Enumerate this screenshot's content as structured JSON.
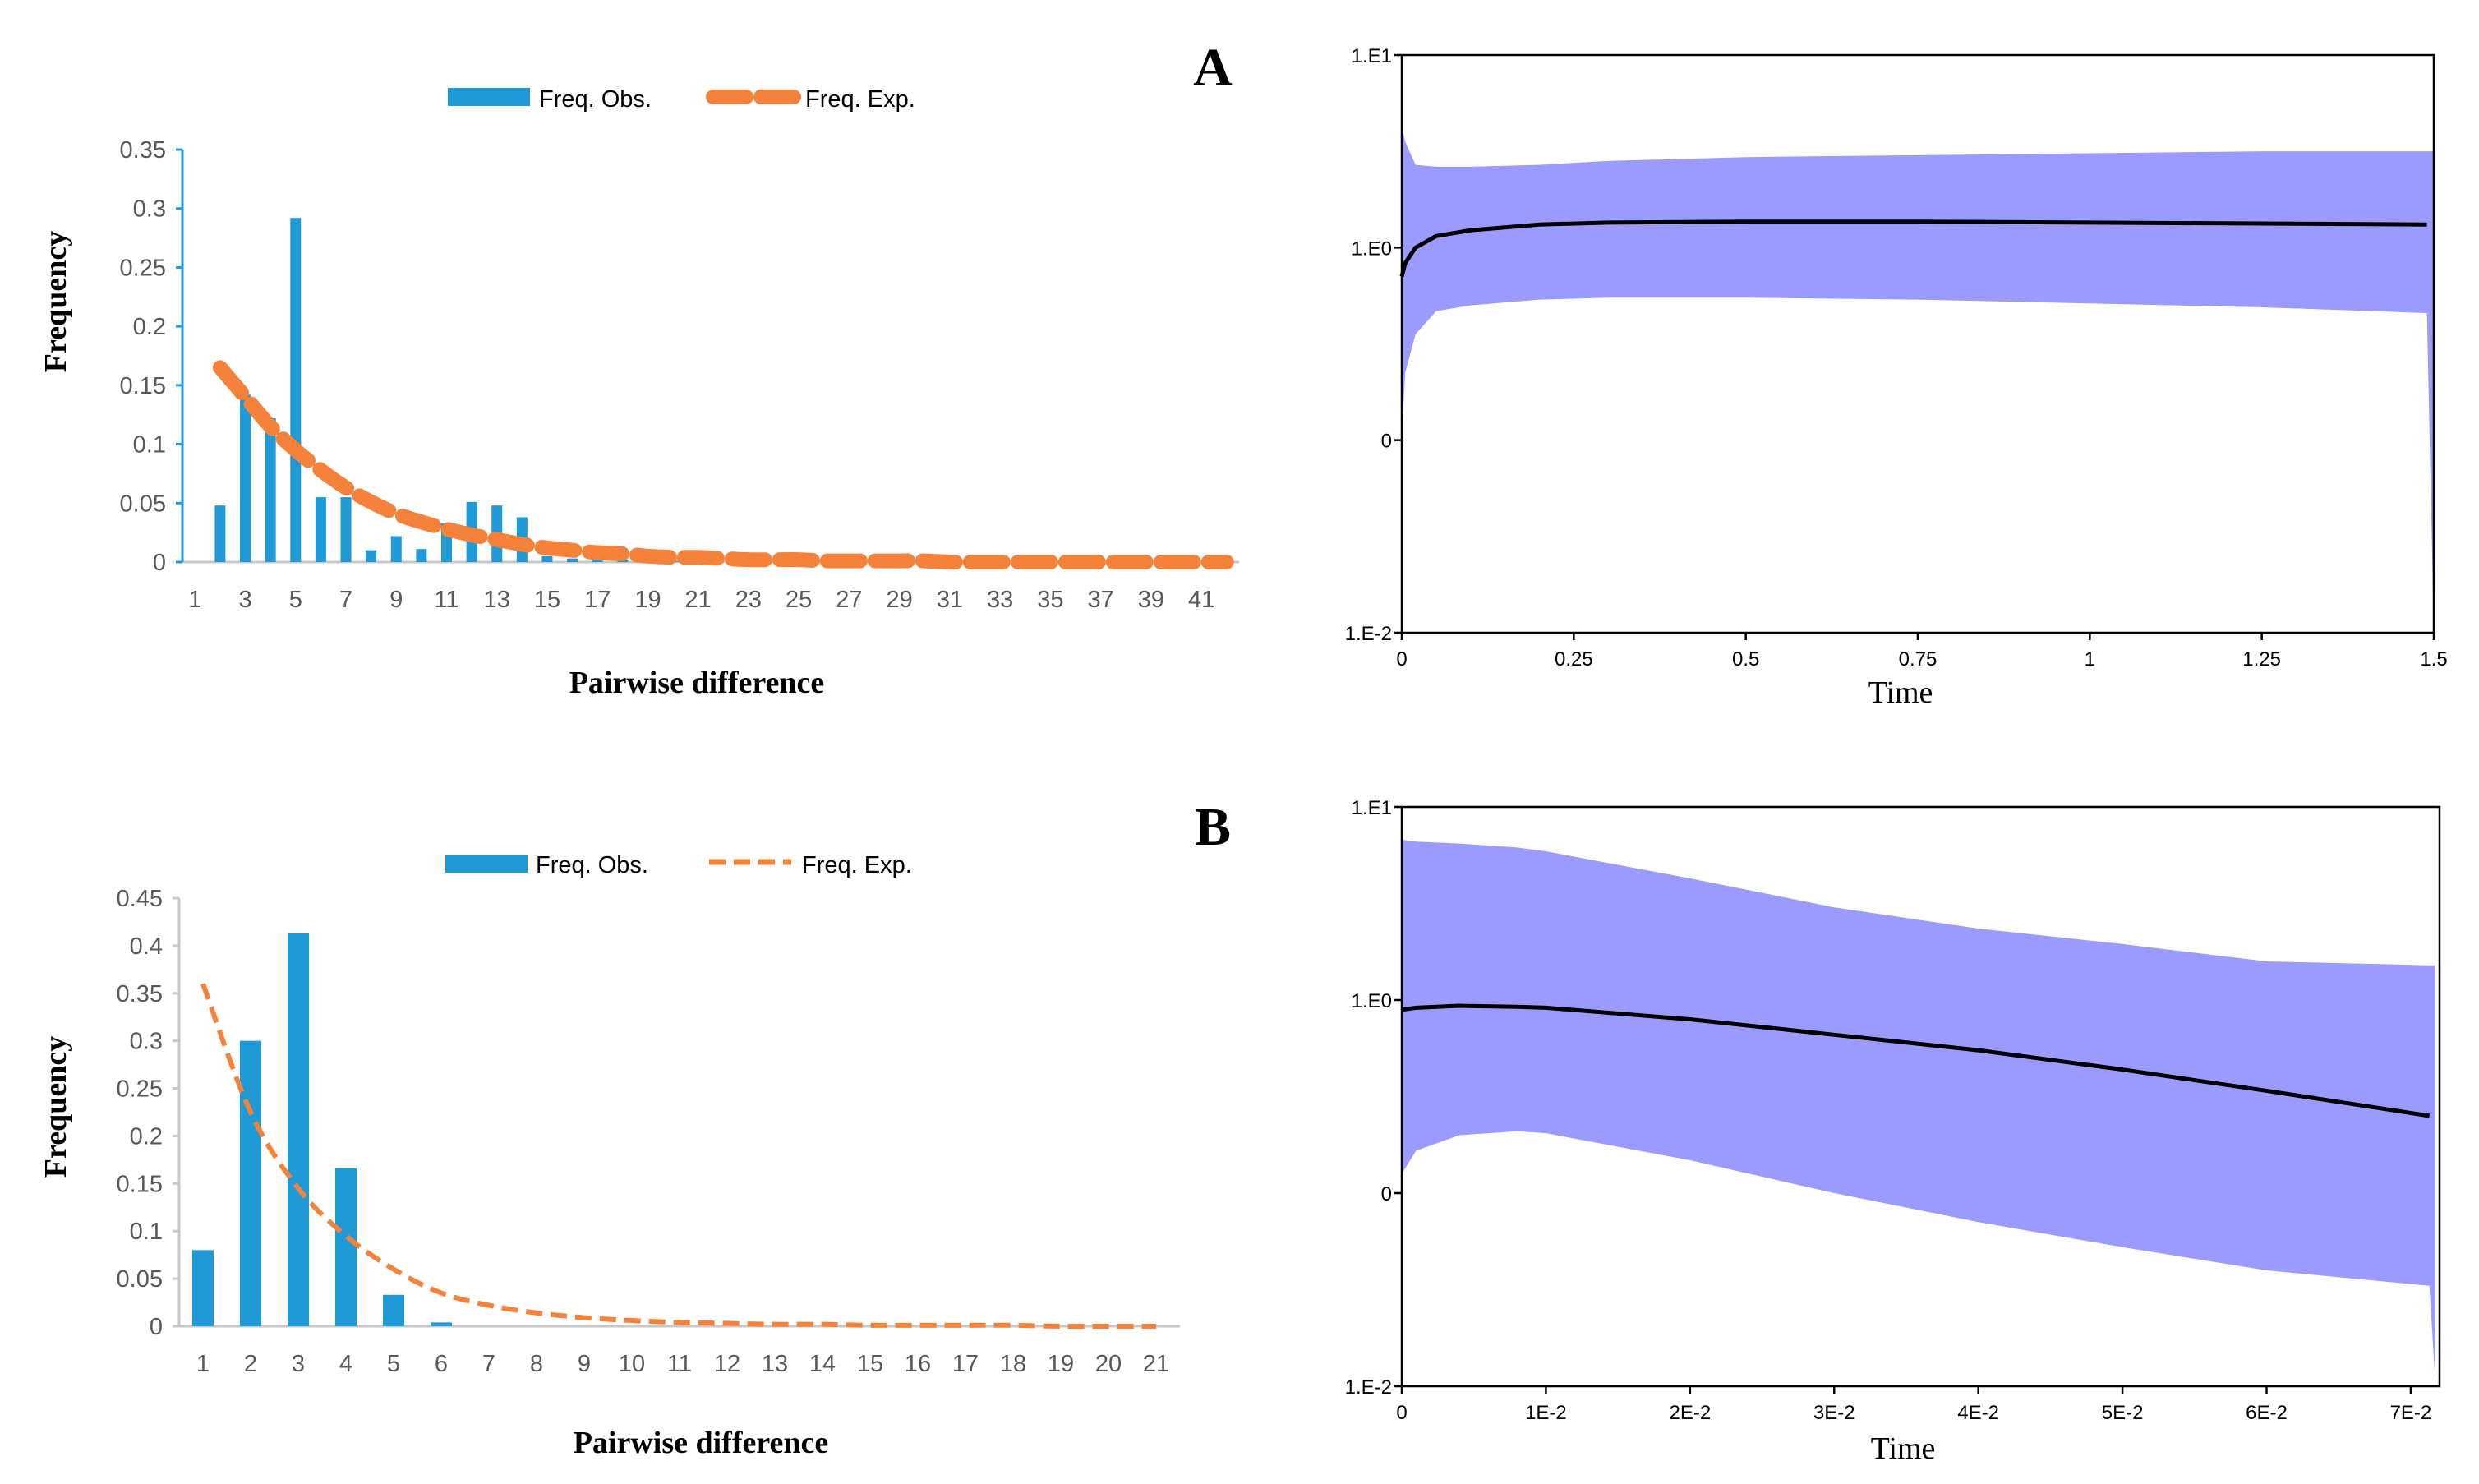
{
  "colors": {
    "bar": "#1f9ad6",
    "expected": "#f5823a",
    "band": "#9b9bfd",
    "median": "#000000",
    "axis_light": "#c8c8c8",
    "axis_blue": "#1f9ad6",
    "text_gray": "#595959"
  },
  "chart_data": [
    {
      "id": "A-mismatch",
      "type": "bar",
      "panel_label": "A",
      "title": "",
      "xlabel": "Pairwise difference",
      "ylabel": "Frequency",
      "ylim": [
        0,
        0.35
      ],
      "yticks": [
        "0",
        "0.05",
        "0.1",
        "0.15",
        "0.2",
        "0.25",
        "0.3",
        "0.35"
      ],
      "xtick_labels": [
        "1",
        "3",
        "5",
        "7",
        "9",
        "11",
        "13",
        "15",
        "17",
        "19",
        "21",
        "23",
        "25",
        "27",
        "29",
        "31",
        "33",
        "35",
        "37",
        "39",
        "41"
      ],
      "legend": [
        "Freq. Obs.",
        "Freq. Exp."
      ],
      "categories": [
        1,
        2,
        3,
        4,
        5,
        6,
        7,
        8,
        9,
        10,
        11,
        12,
        13,
        14,
        15,
        16,
        17,
        18,
        19,
        20,
        21,
        22,
        23,
        24,
        25,
        26,
        27,
        28,
        29,
        30,
        31,
        32,
        33,
        34,
        35,
        36,
        37,
        38,
        39,
        40,
        41,
        42
      ],
      "series": [
        {
          "name": "Freq. Obs.",
          "kind": "bar",
          "values": [
            0,
            0.048,
            0.142,
            0.122,
            0.292,
            0.055,
            0.055,
            0.01,
            0.022,
            0.011,
            0.033,
            0.051,
            0.048,
            0.038,
            0.005,
            0.003,
            0.007,
            0.002,
            0.002,
            0.001,
            0.001,
            0,
            0,
            0,
            0,
            0,
            0,
            0,
            0.002,
            0.006,
            0,
            0,
            0,
            0,
            0,
            0,
            0,
            0,
            0,
            0,
            0,
            0
          ]
        },
        {
          "name": "Freq. Exp.",
          "kind": "line",
          "values": [
            null,
            0.165,
            0.14,
            0.115,
            0.095,
            0.078,
            0.063,
            0.051,
            0.041,
            0.034,
            0.028,
            0.023,
            0.019,
            0.015,
            0.012,
            0.01,
            0.008,
            0.007,
            0.005,
            0.004,
            0.004,
            0.003,
            0.002,
            0.002,
            0.002,
            0.001,
            0.001,
            0.001,
            0.001,
            0.001,
            0,
            0,
            0,
            0,
            0,
            0,
            0,
            0,
            0,
            0,
            0,
            0
          ]
        }
      ]
    },
    {
      "id": "A-skyline",
      "type": "area",
      "title": "",
      "xlabel": "Time",
      "ylabel": "",
      "xlim": [
        0,
        1.5
      ],
      "xticks": [
        0,
        0.25,
        0.5,
        0.75,
        1,
        1.25,
        1.5
      ],
      "xtick_labels": [
        "0",
        "0.25",
        "0.5",
        "0.75",
        "1",
        "1.25",
        "1.5"
      ],
      "ylim_log10": [
        -2,
        1
      ],
      "yticks_log10": [
        -2,
        -1,
        0,
        1
      ],
      "ytick_labels": [
        "1.E-2",
        "0",
        "1.E0",
        "1.E1"
      ],
      "x": [
        0,
        0.005,
        0.02,
        0.05,
        0.1,
        0.2,
        0.3,
        0.5,
        0.75,
        1.0,
        1.25,
        1.49,
        1.5
      ],
      "median": [
        -0.15,
        -0.08,
        0.0,
        0.06,
        0.09,
        0.12,
        0.13,
        0.135,
        0.135,
        0.13,
        0.125,
        0.12,
        null
      ],
      "upper": [
        0.63,
        0.55,
        0.43,
        0.42,
        0.42,
        0.43,
        0.45,
        0.47,
        0.48,
        0.49,
        0.5,
        0.5,
        0.5
      ],
      "lower": [
        -1.0,
        -0.65,
        -0.45,
        -0.33,
        -0.3,
        -0.27,
        -0.26,
        -0.26,
        -0.27,
        -0.29,
        -0.31,
        -0.34,
        -2.0
      ]
    },
    {
      "id": "B-mismatch",
      "type": "bar",
      "panel_label": "B",
      "title": "",
      "xlabel": "Pairwise difference",
      "ylabel": "Frequency",
      "ylim": [
        0,
        0.45
      ],
      "yticks": [
        "0",
        "0.05",
        "0.1",
        "0.15",
        "0.2",
        "0.25",
        "0.3",
        "0.35",
        "0.4",
        "0.45"
      ],
      "xtick_labels": [
        "1",
        "2",
        "3",
        "4",
        "5",
        "6",
        "7",
        "8",
        "9",
        "10",
        "11",
        "12",
        "13",
        "14",
        "15",
        "16",
        "17",
        "18",
        "19",
        "20",
        "21"
      ],
      "legend": [
        "Freq. Obs.",
        "Freq. Exp."
      ],
      "categories": [
        1,
        2,
        3,
        4,
        5,
        6,
        7,
        8,
        9,
        10,
        11,
        12,
        13,
        14,
        15,
        16,
        17,
        18,
        19,
        20,
        21
      ],
      "series": [
        {
          "name": "Freq. Obs.",
          "kind": "bar",
          "values": [
            0.08,
            0.3,
            0.413,
            0.166,
            0.033,
            0.004,
            0,
            0,
            0,
            0,
            0,
            0,
            0,
            0,
            0,
            0,
            0,
            0,
            0,
            0,
            0
          ]
        },
        {
          "name": "Freq. Exp.",
          "kind": "line",
          "values": [
            0.36,
            0.225,
            0.145,
            0.095,
            0.06,
            0.035,
            0.022,
            0.014,
            0.009,
            0.006,
            0.004,
            0.003,
            0.002,
            0.002,
            0.001,
            0.001,
            0.001,
            0.001,
            0,
            0,
            0
          ]
        }
      ]
    },
    {
      "id": "B-skyline",
      "type": "area",
      "title": "",
      "xlabel": "Time",
      "ylabel": "",
      "xlim": [
        0,
        0.072
      ],
      "xticks": [
        0,
        0.01,
        0.02,
        0.03,
        0.04,
        0.05,
        0.06,
        0.07
      ],
      "xtick_labels": [
        "0",
        "1E-2",
        "2E-2",
        "3E-2",
        "4E-2",
        "5E-2",
        "6E-2",
        "7E-2"
      ],
      "ylim_log10": [
        -2,
        1
      ],
      "yticks_log10": [
        -2,
        -1,
        0,
        1
      ],
      "ytick_labels": [
        "1.E-2",
        "0",
        "1.E0",
        "1.E1"
      ],
      "x": [
        0,
        0.001,
        0.004,
        0.008,
        0.01,
        0.02,
        0.03,
        0.04,
        0.05,
        0.06,
        0.0713,
        0.0717
      ],
      "median": [
        -0.05,
        -0.04,
        -0.03,
        -0.035,
        -0.04,
        -0.1,
        -0.18,
        -0.26,
        -0.36,
        -0.47,
        -0.6,
        null
      ],
      "upper": [
        0.83,
        0.82,
        0.81,
        0.79,
        0.77,
        0.63,
        0.48,
        0.37,
        0.29,
        0.2,
        0.18,
        0.18
      ],
      "lower": [
        -0.9,
        -0.78,
        -0.7,
        -0.68,
        -0.69,
        -0.83,
        -1.0,
        -1.15,
        -1.28,
        -1.4,
        -1.48,
        -1.98
      ]
    }
  ]
}
